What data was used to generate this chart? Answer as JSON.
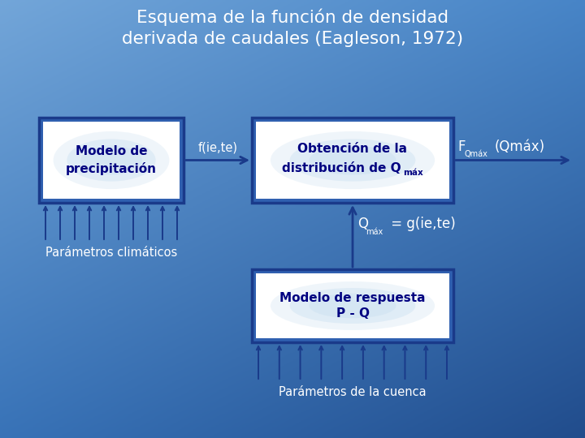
{
  "title_line1": "Esquema de la función de densidad",
  "title_line2": "derivada de caudales (Eagleson, 1972)",
  "box1_text": "Modelo de\nprecipitación",
  "box3_text": "Modelo de respuesta\nP - Q",
  "arrow1_label": "f(ie,te)",
  "label1": "Parámetros climáticos",
  "label2": "Parámetros de la cuenca",
  "title_color": "#ffffff",
  "box_border_color": "#1a3a8a",
  "box_text_color": "#000080",
  "arrow_color": "#1a3a8a",
  "label_color": "#ffffff",
  "connector_label_color": "#ffffff",
  "bg_tl": [
    0.45,
    0.65,
    0.85
  ],
  "bg_tr": [
    0.28,
    0.52,
    0.78
  ],
  "bg_bl": [
    0.22,
    0.45,
    0.72
  ],
  "bg_br": [
    0.13,
    0.3,
    0.55
  ]
}
